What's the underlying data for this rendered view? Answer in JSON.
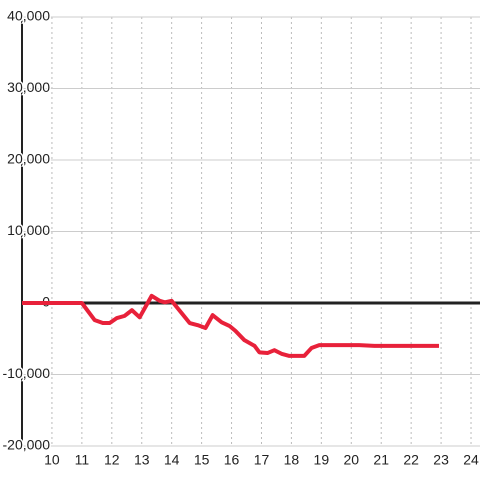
{
  "chart_data": {
    "type": "line",
    "x": [
      9,
      11,
      11.43,
      11.7,
      11.93,
      12.17,
      12.43,
      12.67,
      12.93,
      13.33,
      13.6,
      13.77,
      14.0,
      14.33,
      14.6,
      14.87,
      15.13,
      15.37,
      15.67,
      15.93,
      16.13,
      16.43,
      16.77,
      16.93,
      17.2,
      17.43,
      17.67,
      17.93,
      18.43,
      18.67,
      18.93,
      20.27,
      20.77,
      22.93
    ],
    "series": [
      {
        "color": "#e8213a",
        "values": [
          0,
          0,
          -2400,
          -2800,
          -2800,
          -2100,
          -1800,
          -1000,
          -2000,
          1000,
          300,
          100,
          300,
          -1400,
          -2800,
          -3100,
          -3500,
          -1700,
          -2700,
          -3200,
          -3900,
          -5200,
          -6000,
          -6900,
          -7000,
          -6600,
          -7100,
          -7400,
          -7400,
          -6300,
          -5900,
          -5900,
          -6000,
          -6000
        ]
      }
    ],
    "xlim": [
      9,
      24.3
    ],
    "xticks": [
      10,
      11,
      12,
      13,
      14,
      15,
      16,
      17,
      18,
      19,
      20,
      21,
      22,
      23,
      24
    ],
    "ylim": [
      -20000,
      40000
    ],
    "yticks": [
      {
        "value": -20000,
        "label": "-20,000"
      },
      {
        "value": -10000,
        "label": "-10,000"
      },
      0,
      {
        "value": 10000,
        "label": "10,000"
      },
      {
        "value": 20000,
        "label": "20,000"
      },
      {
        "value": 30000,
        "label": "30,000"
      },
      {
        "value": 40000,
        "label": "40,000"
      }
    ],
    "grid": true
  }
}
